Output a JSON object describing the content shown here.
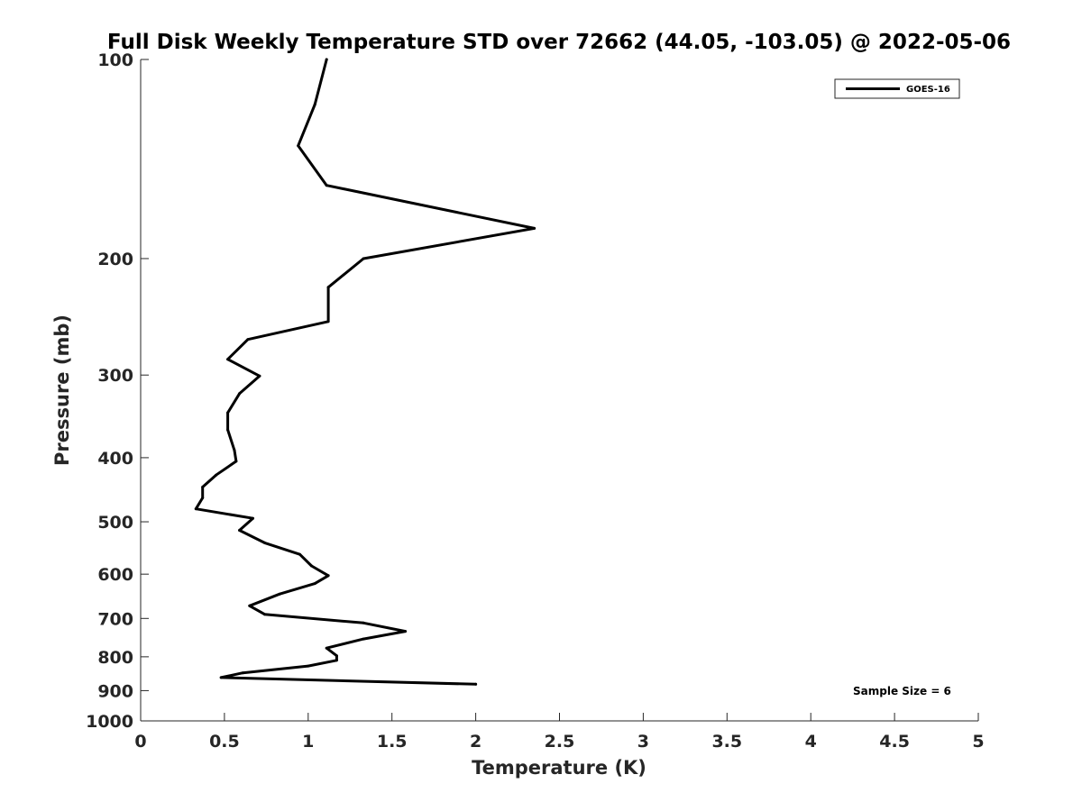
{
  "chart_data": {
    "type": "line",
    "title": "Full Disk Weekly Temperature STD over 72662 (44.05, -103.05) @ 2022-05-06",
    "xlabel": "Temperature (K)",
    "ylabel": "Pressure (mb)",
    "xlim": [
      0,
      5
    ],
    "ylim": [
      100,
      1000
    ],
    "yscale": "log",
    "y_reversed": true,
    "xticks": [
      0,
      0.5,
      1,
      1.5,
      2,
      2.5,
      3,
      3.5,
      4,
      4.5,
      5
    ],
    "xtick_labels": [
      "0",
      "0.5",
      "1",
      "1.5",
      "2",
      "2.5",
      "3",
      "3.5",
      "4",
      "4.5",
      "5"
    ],
    "yticks": [
      100,
      200,
      300,
      400,
      500,
      600,
      700,
      800,
      900,
      1000
    ],
    "ytick_labels": [
      "100",
      "200",
      "300",
      "400",
      "500",
      "600",
      "700",
      "800",
      "900",
      "1000"
    ],
    "grid": false,
    "legend_position": "top-right",
    "series": [
      {
        "name": "GOES-16",
        "color": "#000000",
        "x": [
          1.11,
          1.04,
          0.94,
          1.11,
          2.35,
          1.33,
          1.12,
          1.12,
          0.64,
          0.52,
          0.71,
          0.59,
          0.52,
          0.52,
          0.56,
          0.57,
          0.45,
          0.37,
          0.37,
          0.33,
          0.67,
          0.59,
          0.74,
          0.95,
          1.02,
          1.12,
          1.04,
          0.83,
          0.65,
          0.74,
          1.33,
          1.58,
          1.33,
          1.11,
          1.17,
          1.17,
          1.0,
          0.61,
          0.48,
          2.0
        ],
        "y": [
          100,
          117,
          135,
          155,
          180,
          200,
          221,
          249,
          265,
          284,
          301,
          320,
          342,
          363,
          390,
          405,
          425,
          443,
          460,
          478,
          494,
          515,
          538,
          560,
          583,
          603,
          620,
          643,
          670,
          690,
          711,
          732,
          752,
          776,
          797,
          810,
          826,
          846,
          860,
          880
        ]
      }
    ],
    "annotations": [
      "Sample Size = 6"
    ]
  }
}
